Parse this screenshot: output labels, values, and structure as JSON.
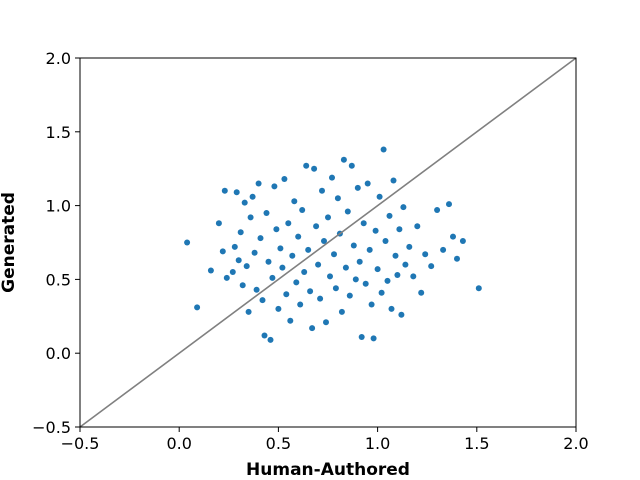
{
  "chart_data": {
    "type": "scatter",
    "title": "",
    "xlabel": "Human-Authored",
    "ylabel": "Generated",
    "xlim": [
      -0.5,
      2.0
    ],
    "ylim": [
      -0.5,
      2.0
    ],
    "xticks": [
      -0.5,
      0.0,
      0.5,
      1.0,
      1.5,
      2.0
    ],
    "yticks": [
      -0.5,
      0.0,
      0.5,
      1.0,
      1.5,
      2.0
    ],
    "xtick_labels": [
      "−0.5",
      "0.0",
      "0.5",
      "1.0",
      "1.5",
      "2.0"
    ],
    "ytick_labels": [
      "−0.5",
      "0.0",
      "0.5",
      "1.0",
      "1.5",
      "2.0"
    ],
    "grid": false,
    "point_color": "#1f77b4",
    "reference_line": {
      "from": [
        -0.5,
        -0.5
      ],
      "to": [
        2.0,
        2.0
      ],
      "color": "#808080"
    },
    "series": [
      {
        "points": [
          [
            0.04,
            0.75
          ],
          [
            0.09,
            0.31
          ],
          [
            0.16,
            0.56
          ],
          [
            0.2,
            0.88
          ],
          [
            0.23,
            1.1
          ],
          [
            0.22,
            0.69
          ],
          [
            0.24,
            0.51
          ],
          [
            0.27,
            0.55
          ],
          [
            0.28,
            0.72
          ],
          [
            0.29,
            1.09
          ],
          [
            0.3,
            0.63
          ],
          [
            0.31,
            0.82
          ],
          [
            0.32,
            0.46
          ],
          [
            0.33,
            1.02
          ],
          [
            0.34,
            0.59
          ],
          [
            0.35,
            0.28
          ],
          [
            0.36,
            0.92
          ],
          [
            0.37,
            1.06
          ],
          [
            0.38,
            0.68
          ],
          [
            0.39,
            0.43
          ],
          [
            0.4,
            1.15
          ],
          [
            0.41,
            0.78
          ],
          [
            0.42,
            0.36
          ],
          [
            0.43,
            0.12
          ],
          [
            0.44,
            0.95
          ],
          [
            0.45,
            0.62
          ],
          [
            0.46,
            0.09
          ],
          [
            0.47,
            0.51
          ],
          [
            0.48,
            1.13
          ],
          [
            0.49,
            0.84
          ],
          [
            0.5,
            0.3
          ],
          [
            0.51,
            0.71
          ],
          [
            0.52,
            0.58
          ],
          [
            0.53,
            1.18
          ],
          [
            0.54,
            0.4
          ],
          [
            0.55,
            0.88
          ],
          [
            0.56,
            0.22
          ],
          [
            0.57,
            0.66
          ],
          [
            0.58,
            1.03
          ],
          [
            0.59,
            0.48
          ],
          [
            0.6,
            0.79
          ],
          [
            0.61,
            0.33
          ],
          [
            0.62,
            0.97
          ],
          [
            0.63,
            0.55
          ],
          [
            0.64,
            1.27
          ],
          [
            0.65,
            0.7
          ],
          [
            0.66,
            0.42
          ],
          [
            0.67,
            0.17
          ],
          [
            0.68,
            1.25
          ],
          [
            0.69,
            0.86
          ],
          [
            0.7,
            0.6
          ],
          [
            0.71,
            0.37
          ],
          [
            0.72,
            1.1
          ],
          [
            0.73,
            0.76
          ],
          [
            0.74,
            0.21
          ],
          [
            0.75,
            0.92
          ],
          [
            0.76,
            0.52
          ],
          [
            0.77,
            1.19
          ],
          [
            0.78,
            0.67
          ],
          [
            0.79,
            0.44
          ],
          [
            0.8,
            1.05
          ],
          [
            0.81,
            0.81
          ],
          [
            0.82,
            0.28
          ],
          [
            0.83,
            1.31
          ],
          [
            0.84,
            0.58
          ],
          [
            0.85,
            0.96
          ],
          [
            0.86,
            0.39
          ],
          [
            0.87,
            1.27
          ],
          [
            0.88,
            0.73
          ],
          [
            0.89,
            0.5
          ],
          [
            0.9,
            1.12
          ],
          [
            0.91,
            0.62
          ],
          [
            0.92,
            0.11
          ],
          [
            0.93,
            0.88
          ],
          [
            0.94,
            0.47
          ],
          [
            0.95,
            1.15
          ],
          [
            0.96,
            0.7
          ],
          [
            0.97,
            0.33
          ],
          [
            0.98,
            0.1
          ],
          [
            0.99,
            0.83
          ],
          [
            1.0,
            0.57
          ],
          [
            1.01,
            1.06
          ],
          [
            1.02,
            0.41
          ],
          [
            1.03,
            1.38
          ],
          [
            1.04,
            0.76
          ],
          [
            1.05,
            0.49
          ],
          [
            1.06,
            0.93
          ],
          [
            1.07,
            0.3
          ],
          [
            1.08,
            1.17
          ],
          [
            1.09,
            0.66
          ],
          [
            1.1,
            0.53
          ],
          [
            1.11,
            0.84
          ],
          [
            1.12,
            0.26
          ],
          [
            1.13,
            0.99
          ],
          [
            1.14,
            0.6
          ],
          [
            1.16,
            0.72
          ],
          [
            1.18,
            0.52
          ],
          [
            1.2,
            0.86
          ],
          [
            1.22,
            0.41
          ],
          [
            1.24,
            0.67
          ],
          [
            1.27,
            0.59
          ],
          [
            1.3,
            0.97
          ],
          [
            1.33,
            0.7
          ],
          [
            1.36,
            1.01
          ],
          [
            1.38,
            0.79
          ],
          [
            1.4,
            0.64
          ],
          [
            1.43,
            0.76
          ],
          [
            1.51,
            0.44
          ]
        ]
      }
    ]
  }
}
